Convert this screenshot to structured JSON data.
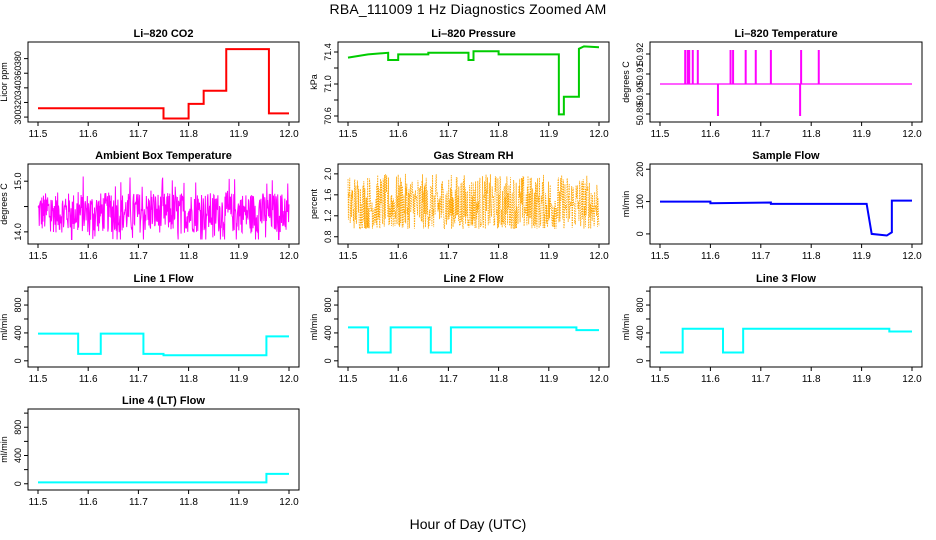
{
  "figure": {
    "title": "RBA_111009  1 Hz Diagnostics Zoomed AM",
    "xlabel": "Hour of Day (UTC)"
  },
  "chart_data": [
    {
      "type": "line",
      "title": "Li–820 CO2",
      "ylabel": "Licor ppm",
      "color": "#ff0000",
      "xlim": [
        11.5,
        12.0
      ],
      "ylim": [
        296,
        400
      ],
      "yticks": [
        300,
        320,
        340,
        360,
        380
      ],
      "ytick_labels": [
        "300",
        "320",
        "340",
        "360",
        "380"
      ],
      "x": [
        11.5,
        11.75,
        11.75,
        11.8,
        11.8,
        11.83,
        11.83,
        11.875,
        11.875,
        11.96,
        11.96,
        12.0
      ],
      "values": [
        312,
        312,
        298,
        298,
        318,
        318,
        336,
        336,
        393,
        393,
        305,
        305
      ]
    },
    {
      "type": "line",
      "title": "Li–820 Pressure",
      "ylabel": "kPa",
      "color": "#00cc00",
      "xlim": [
        11.5,
        12.0
      ],
      "ylim": [
        70.55,
        71.5
      ],
      "yticks": [
        70.6,
        70.8,
        71.0,
        71.2,
        71.4
      ],
      "ytick_labels": [
        "70.6",
        "71.0",
        "71.4"
      ],
      "x": [
        11.5,
        11.54,
        11.54,
        11.58,
        11.58,
        11.6,
        11.6,
        11.66,
        11.66,
        11.74,
        11.74,
        11.75,
        11.75,
        11.8,
        11.8,
        11.92,
        11.92,
        11.93,
        11.93,
        11.96,
        11.96,
        11.97,
        11.97,
        12.0
      ],
      "values": [
        71.33,
        71.37,
        71.37,
        71.39,
        71.3,
        71.3,
        71.37,
        71.37,
        71.39,
        71.39,
        71.3,
        71.3,
        71.41,
        71.41,
        71.37,
        71.37,
        70.62,
        70.62,
        70.84,
        70.84,
        71.44,
        71.47,
        71.47,
        71.46
      ]
    },
    {
      "type": "line",
      "title": "Li–820 Temperature",
      "ylabel": "degrees C",
      "color": "#ff00ff",
      "xlim": [
        11.5,
        12.0
      ],
      "ylim": [
        50.887,
        50.925
      ],
      "yticks": [
        50.89,
        50.9,
        50.91,
        50.92
      ],
      "ytick_labels": [
        "50.89",
        "50.90",
        "50.91",
        "50.92"
      ],
      "baseline": 50.905,
      "spikes_up": [
        [
          11.55,
          50.922
        ],
        [
          11.555,
          50.922
        ],
        [
          11.558,
          50.922
        ],
        [
          11.565,
          50.922
        ],
        [
          11.575,
          50.922
        ],
        [
          11.64,
          50.922
        ],
        [
          11.645,
          50.922
        ],
        [
          11.67,
          50.922
        ],
        [
          11.69,
          50.922
        ],
        [
          11.72,
          50.922
        ],
        [
          11.78,
          50.922
        ],
        [
          11.815,
          50.922
        ]
      ],
      "spikes_down": [
        [
          11.615,
          50.889
        ],
        [
          11.778,
          50.889
        ]
      ]
    },
    {
      "type": "line",
      "title": "Ambient Box Temperature",
      "ylabel": "degrees C",
      "color": "#ff00ff",
      "xlim": [
        11.5,
        12.0
      ],
      "ylim": [
        13.8,
        15.3
      ],
      "yticks": [
        14.0,
        14.5,
        15.0
      ],
      "ytick_labels": [
        "14.0",
        "15.0"
      ],
      "center": 14.38,
      "amplitude": 0.5
    },
    {
      "type": "line",
      "title": "Gas Stream RH",
      "ylabel": "percent",
      "color": "#ffa500",
      "xlim": [
        11.5,
        12.0
      ],
      "ylim": [
        0.7,
        2.15
      ],
      "yticks": [
        0.8,
        1.2,
        1.6,
        2.0
      ],
      "ytick_labels": [
        "0.8",
        "1.2",
        "1.6",
        "2.0"
      ],
      "low": 0.95,
      "high": 2.0
    },
    {
      "type": "line",
      "title": "Sample Flow",
      "ylabel": "ml/min",
      "color": "#0000ff",
      "xlim": [
        11.5,
        12.0
      ],
      "ylim": [
        -25,
        210
      ],
      "yticks": [
        0,
        100,
        200
      ],
      "ytick_labels": [
        "0",
        "100",
        "200"
      ],
      "x": [
        11.5,
        11.6,
        11.6,
        11.72,
        11.72,
        11.91,
        11.92,
        11.95,
        11.96,
        11.96,
        12.0
      ],
      "values": [
        100,
        100,
        95,
        97,
        93,
        93,
        0,
        -5,
        5,
        103,
        103
      ]
    },
    {
      "type": "line",
      "title": "Line 1 Flow",
      "ylabel": "ml/min",
      "color": "#00ffff",
      "xlim": [
        11.5,
        12.0
      ],
      "ylim": [
        -60,
        1030
      ],
      "yticks": [
        0,
        200,
        400,
        600,
        800,
        1000
      ],
      "ytick_labels": [
        "0",
        "400",
        "800"
      ],
      "x": [
        11.5,
        11.58,
        11.58,
        11.625,
        11.625,
        11.71,
        11.71,
        11.75,
        11.75,
        11.955,
        11.955,
        12.0
      ],
      "values": [
        390,
        390,
        100,
        100,
        390,
        390,
        100,
        100,
        80,
        80,
        350,
        350
      ]
    },
    {
      "type": "line",
      "title": "Line 2 Flow",
      "ylabel": "ml/min",
      "color": "#00ffff",
      "xlim": [
        11.5,
        12.0
      ],
      "ylim": [
        -60,
        1030
      ],
      "yticks": [
        0,
        200,
        400,
        600,
        800,
        1000
      ],
      "ytick_labels": [
        "0",
        "400",
        "800"
      ],
      "x": [
        11.5,
        11.54,
        11.54,
        11.585,
        11.585,
        11.665,
        11.665,
        11.705,
        11.705,
        11.955,
        11.955,
        12.0
      ],
      "values": [
        480,
        480,
        120,
        120,
        480,
        480,
        120,
        120,
        480,
        480,
        440,
        440
      ]
    },
    {
      "type": "line",
      "title": "Line 3 Flow",
      "ylabel": "ml/min",
      "color": "#00ffff",
      "xlim": [
        11.5,
        12.0
      ],
      "ylim": [
        -60,
        1030
      ],
      "yticks": [
        0,
        200,
        400,
        600,
        800,
        1000
      ],
      "ytick_labels": [
        "0",
        "400",
        "800"
      ],
      "x": [
        11.5,
        11.545,
        11.545,
        11.625,
        11.625,
        11.665,
        11.665,
        11.955,
        11.955,
        12.0
      ],
      "values": [
        120,
        120,
        460,
        460,
        120,
        120,
        460,
        460,
        420,
        420
      ]
    },
    {
      "type": "line",
      "title": "Line 4 (LT) Flow",
      "ylabel": "ml/min",
      "color": "#00ffff",
      "xlim": [
        11.5,
        12.0
      ],
      "ylim": [
        -60,
        1030
      ],
      "yticks": [
        0,
        200,
        400,
        600,
        800,
        1000
      ],
      "ytick_labels": [
        "0",
        "400",
        "800"
      ],
      "x": [
        11.5,
        11.955,
        11.955,
        12.0
      ],
      "values": [
        20,
        20,
        140,
        140
      ]
    }
  ],
  "xaxis": {
    "ticks": [
      11.5,
      11.6,
      11.7,
      11.8,
      11.9,
      12.0
    ],
    "tick_labels": [
      "11.5",
      "11.6",
      "11.7",
      "11.8",
      "11.9",
      "12.0"
    ]
  }
}
